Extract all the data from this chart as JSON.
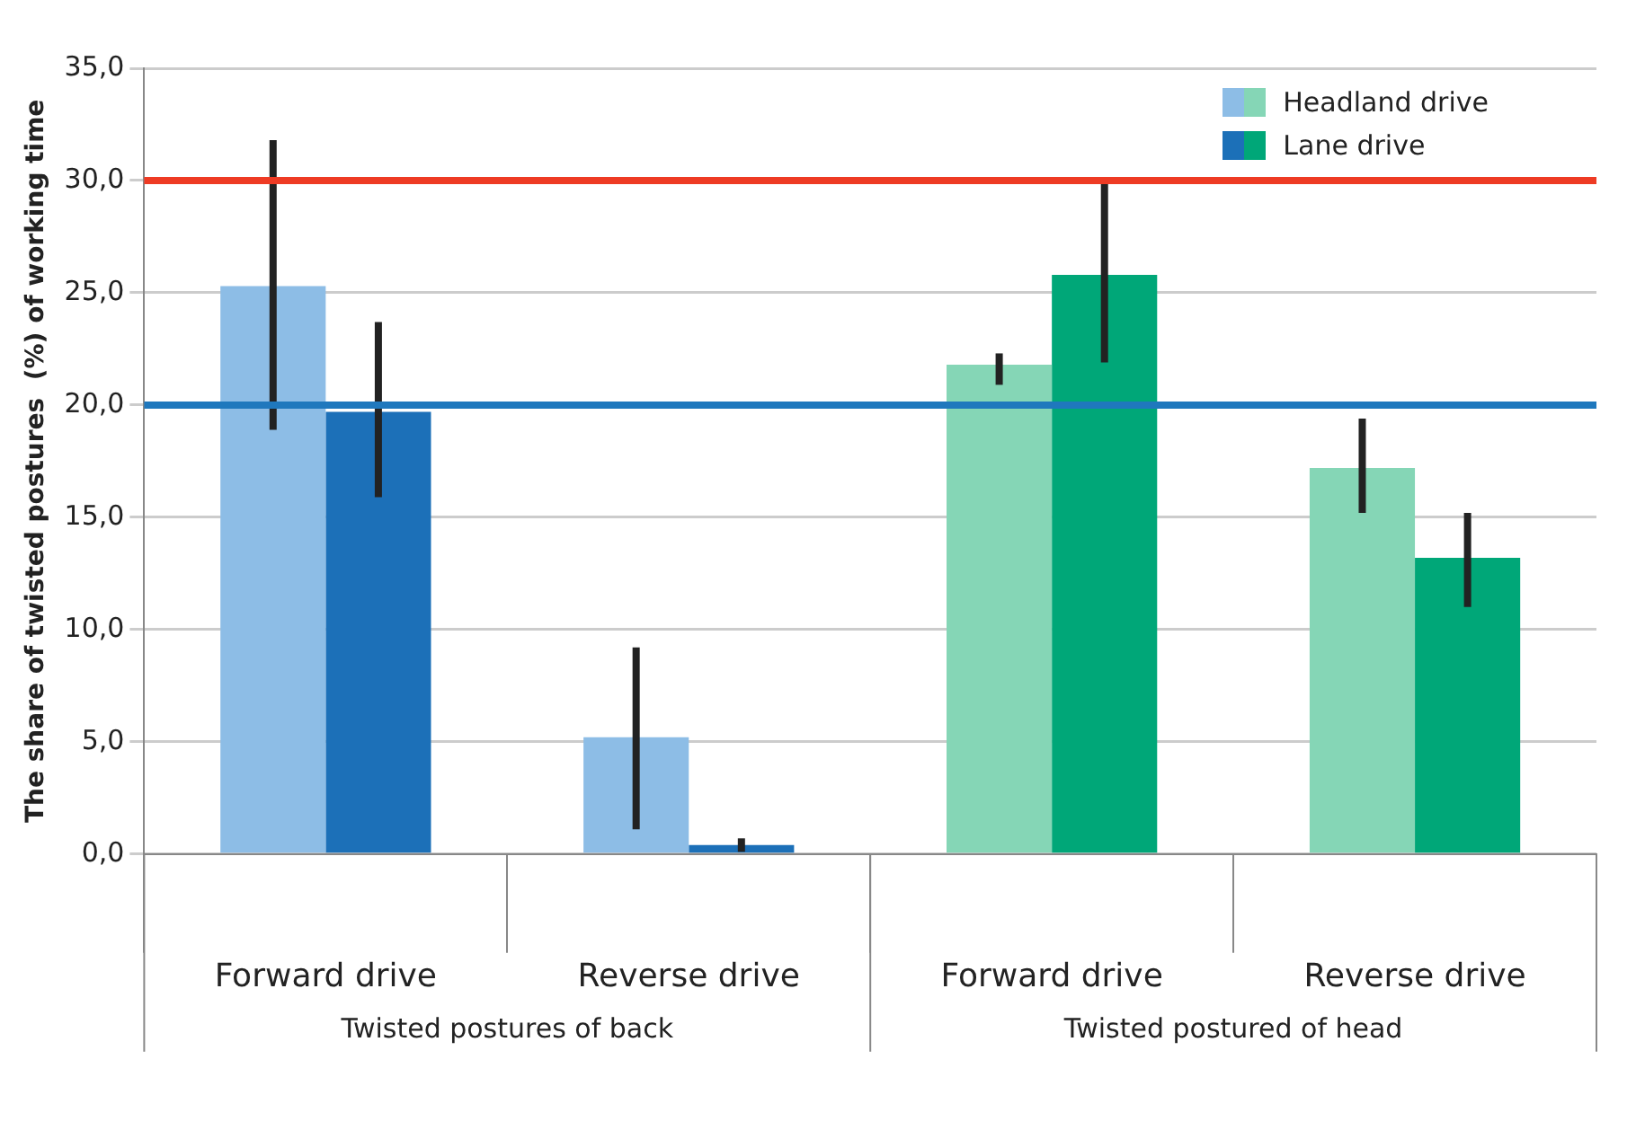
{
  "chart_data": {
    "type": "bar",
    "ylabel": "The share of twisted postures  (%) of working time",
    "categories": [
      "Forward drive",
      "Reverse drive",
      "Forward drive",
      "Reverse drive"
    ],
    "series": [
      {
        "name": "Headland drive",
        "colors": [
          "#8dbde6",
          "#8dbde6",
          "#85d6b6",
          "#85d6b6"
        ],
        "values": [
          25.3,
          5.2,
          21.8,
          17.2
        ],
        "errors": [
          [
            18.9,
            31.8
          ],
          [
            1.1,
            9.2
          ],
          [
            20.9,
            22.3
          ],
          [
            15.2,
            19.4
          ]
        ]
      },
      {
        "name": "Lane drive",
        "colors": [
          "#1c70b8",
          "#1c70b8",
          "#00a778",
          "#00a778"
        ],
        "values": [
          19.7,
          0.4,
          25.8,
          13.2
        ],
        "errors": [
          [
            15.9,
            23.7
          ],
          [
            0.1,
            0.7
          ],
          [
            21.9,
            29.9
          ],
          [
            11.0,
            15.2
          ]
        ]
      }
    ],
    "ylim": [
      0,
      35
    ],
    "yticks": [
      {
        "value": 0,
        "label": "0,0"
      },
      {
        "value": 5,
        "label": "5,0"
      },
      {
        "value": 10,
        "label": "10,0"
      },
      {
        "value": 15,
        "label": "15,0"
      },
      {
        "value": 20,
        "label": "20,0"
      },
      {
        "value": 25,
        "label": "25,0"
      },
      {
        "value": 30,
        "label": "30,0"
      },
      {
        "value": 35,
        "label": "35,0"
      }
    ],
    "ref_lines": [
      {
        "axis": "y",
        "value": 30,
        "color": "#ee3b24"
      },
      {
        "axis": "y",
        "value": 20,
        "color": "#1f78bd"
      }
    ],
    "annotations": [
      "Twisted postures of back",
      "Twisted postured of head"
    ],
    "grid": "y",
    "legend": "top right"
  }
}
